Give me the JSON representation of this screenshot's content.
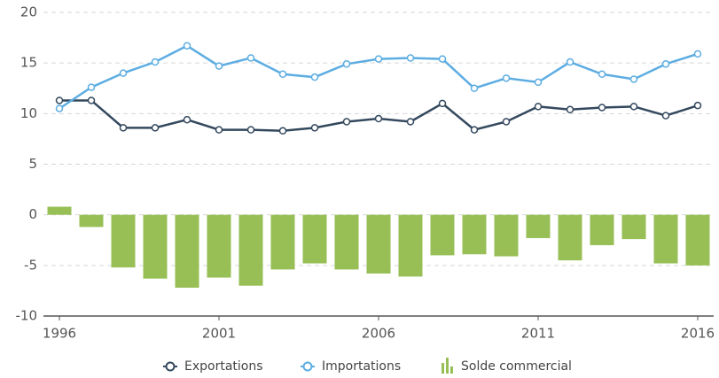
{
  "chart_data": {
    "type": "combo",
    "x": [
      1996,
      1997,
      1998,
      1999,
      2000,
      2001,
      2002,
      2003,
      2004,
      2005,
      2006,
      2007,
      2008,
      2009,
      2010,
      2011,
      2012,
      2013,
      2014,
      2015,
      2016
    ],
    "xlim": [
      1995.5,
      2016.5
    ],
    "xticks": [
      1996,
      2001,
      2006,
      2011,
      2016
    ],
    "ylim": [
      -10,
      20
    ],
    "yticks": [
      -10,
      -5,
      0,
      5,
      10,
      15,
      20
    ],
    "grid": true,
    "legend": "bottom",
    "series": [
      {
        "name": "Exportations",
        "type": "line",
        "color": "#34495e",
        "values": [
          11.3,
          11.3,
          8.6,
          8.6,
          9.4,
          8.4,
          8.4,
          8.3,
          8.6,
          9.2,
          9.5,
          9.2,
          11.0,
          8.4,
          9.2,
          10.7,
          10.4,
          10.6,
          10.7,
          9.8,
          10.8
        ]
      },
      {
        "name": "Importations",
        "type": "line",
        "color": "#5dade2",
        "values": [
          10.5,
          12.6,
          14.0,
          15.1,
          16.7,
          14.7,
          15.5,
          13.9,
          13.6,
          14.9,
          15.4,
          15.5,
          15.4,
          12.5,
          13.5,
          13.1,
          15.1,
          13.9,
          13.4,
          14.9,
          15.9
        ]
      },
      {
        "name": "Solde commercial",
        "type": "bar",
        "color": "#97bf56",
        "values": [
          0.8,
          -1.2,
          -5.2,
          -6.3,
          -7.2,
          -6.2,
          -7.0,
          -5.4,
          -4.8,
          -5.4,
          -5.8,
          -6.1,
          -4.0,
          -3.9,
          -4.1,
          -2.3,
          -4.5,
          -3.0,
          -2.4,
          -4.8,
          -5.0
        ]
      }
    ]
  }
}
